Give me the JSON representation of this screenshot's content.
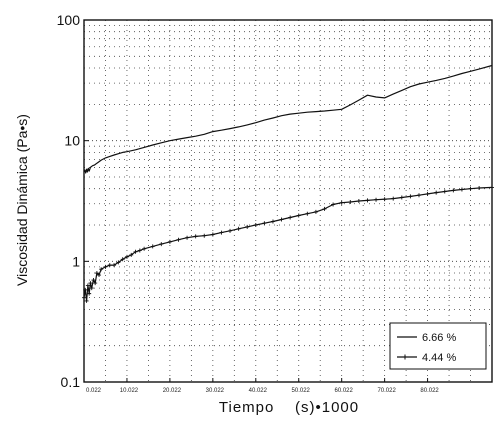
{
  "chart_data": {
    "type": "line",
    "title": "",
    "xlabel": "Tiempo    (s)•1000",
    "ylabel": "Viscosidad Dinámica (Pa•s)",
    "y_scale": "log",
    "ylim": [
      0.1,
      100
    ],
    "xlim": [
      0,
      95000
    ],
    "grid": true,
    "legend_position": "bottom-right",
    "yticks": [
      {
        "value": 100,
        "label": "100"
      },
      {
        "value": 10,
        "label": "10"
      },
      {
        "value": 1,
        "label": "1"
      },
      {
        "value": 0.1,
        "label": "0.1"
      }
    ],
    "xticks": [
      {
        "value": 0,
        "label": "0.022"
      },
      {
        "value": 10000,
        "label": "10.022"
      },
      {
        "value": 20000,
        "label": "20.022"
      },
      {
        "value": 30000,
        "label": "30.022"
      },
      {
        "value": 40000,
        "label": "40.022"
      },
      {
        "value": 50000,
        "label": "50.022"
      },
      {
        "value": 60000,
        "label": "60.022"
      },
      {
        "value": 70000,
        "label": "70.022"
      },
      {
        "value": 80000,
        "label": "80.022"
      }
    ],
    "series": [
      {
        "name": "6.66 %",
        "marker": "none",
        "x": [
          0,
          200,
          400,
          600,
          800,
          1000,
          1200,
          1500,
          2000,
          2500,
          3000,
          3500,
          4000,
          5000,
          6000,
          7000,
          8000,
          9000,
          10000,
          12000,
          14000,
          16000,
          18000,
          20000,
          22000,
          24000,
          26000,
          28000,
          30000,
          32000,
          34000,
          36000,
          38000,
          40000,
          42000,
          44000,
          46000,
          48000,
          50000,
          52000,
          54000,
          56000,
          58000,
          60000,
          62000,
          64000,
          66000,
          68000,
          70000,
          72000,
          74000,
          76000,
          78000,
          80000,
          82000,
          84000,
          86000,
          88000,
          90000,
          92000,
          95000
        ],
        "y": [
          5.5,
          5.7,
          5.4,
          5.8,
          5.5,
          5.9,
          5.6,
          6.0,
          6.2,
          6.3,
          6.5,
          6.7,
          6.9,
          7.2,
          7.4,
          7.6,
          7.8,
          8.0,
          8.1,
          8.4,
          8.8,
          9.2,
          9.6,
          10.0,
          10.3,
          10.6,
          10.9,
          11.3,
          11.9,
          12.2,
          12.6,
          13.0,
          13.5,
          14.1,
          14.8,
          15.4,
          16.1,
          16.6,
          16.9,
          17.2,
          17.4,
          17.6,
          17.9,
          18.2,
          19.8,
          21.7,
          23.8,
          23.0,
          22.6,
          24.3,
          26.1,
          28.0,
          29.5,
          30.5,
          31.6,
          32.8,
          34.3,
          36.0,
          37.6,
          39.2,
          42.0
        ]
      },
      {
        "name": "4.44 %",
        "marker": "plus",
        "x": [
          0,
          300,
          600,
          900,
          1200,
          1500,
          1800,
          2200,
          2600,
          3000,
          3500,
          4000,
          5000,
          6000,
          7000,
          8000,
          9000,
          10000,
          11000,
          12000,
          13000,
          14000,
          16000,
          18000,
          20000,
          22000,
          24000,
          26000,
          28000,
          30000,
          32000,
          34000,
          36000,
          38000,
          40000,
          42000,
          44000,
          46000,
          48000,
          50000,
          52000,
          54000,
          56000,
          58000,
          60000,
          62000,
          64000,
          66000,
          68000,
          70000,
          72000,
          74000,
          76000,
          78000,
          80000,
          82000,
          84000,
          86000,
          88000,
          90000,
          92000,
          95000
        ],
        "y": [
          0.5,
          0.58,
          0.47,
          0.63,
          0.54,
          0.66,
          0.6,
          0.7,
          0.66,
          0.8,
          0.77,
          0.86,
          0.9,
          0.93,
          0.93,
          0.98,
          1.04,
          1.09,
          1.13,
          1.2,
          1.23,
          1.27,
          1.33,
          1.39,
          1.45,
          1.51,
          1.57,
          1.61,
          1.63,
          1.67,
          1.73,
          1.79,
          1.86,
          1.93,
          2.0,
          2.07,
          2.14,
          2.22,
          2.31,
          2.4,
          2.48,
          2.57,
          2.72,
          2.96,
          3.06,
          3.1,
          3.16,
          3.2,
          3.24,
          3.27,
          3.31,
          3.38,
          3.45,
          3.53,
          3.62,
          3.71,
          3.79,
          3.87,
          3.94,
          4.0,
          4.05,
          4.1
        ]
      }
    ]
  }
}
